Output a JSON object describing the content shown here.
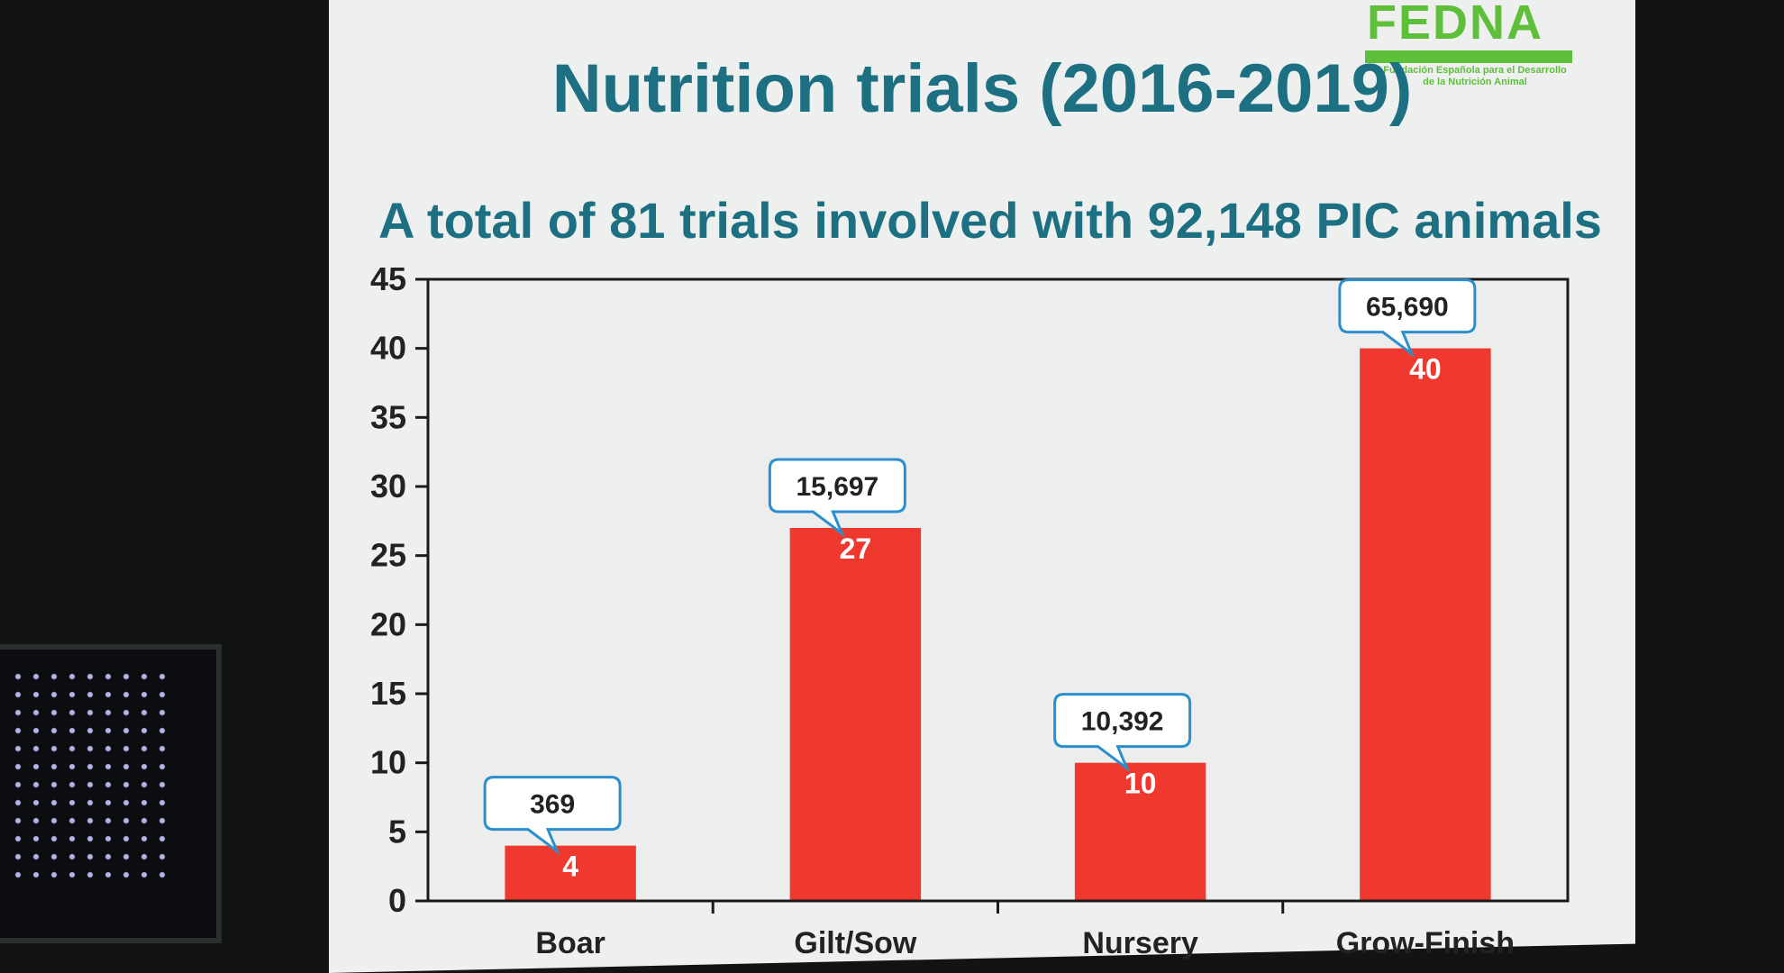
{
  "slide": {
    "title": "Nutrition trials (2016-2019)",
    "subtitle": "A total of 81 trials involved with 92,148 PIC animals"
  },
  "logo": {
    "name": "FEDNA",
    "caption_line1": "Fundación Española para el Desarrollo",
    "caption_line2": "de la Nutrición Animal",
    "color": "#5dbf3a"
  },
  "chart_data": {
    "type": "bar",
    "title": "",
    "xlabel": "",
    "ylabel": "",
    "categories": [
      "Boar",
      "Gilt/Sow",
      "Nursery",
      "Grow-Finish"
    ],
    "values": [
      4,
      27,
      10,
      40
    ],
    "value_labels": [
      "4",
      "27",
      "10",
      "40"
    ],
    "callouts": [
      "369",
      "15,697",
      "10,392",
      "65,690"
    ],
    "ylim": [
      0,
      45
    ],
    "yticks": [
      0,
      5,
      10,
      15,
      20,
      25,
      30,
      35,
      40,
      45
    ],
    "grid": false,
    "bar_color": "#f0392e",
    "callout_border_color": "#2b8fcf"
  }
}
